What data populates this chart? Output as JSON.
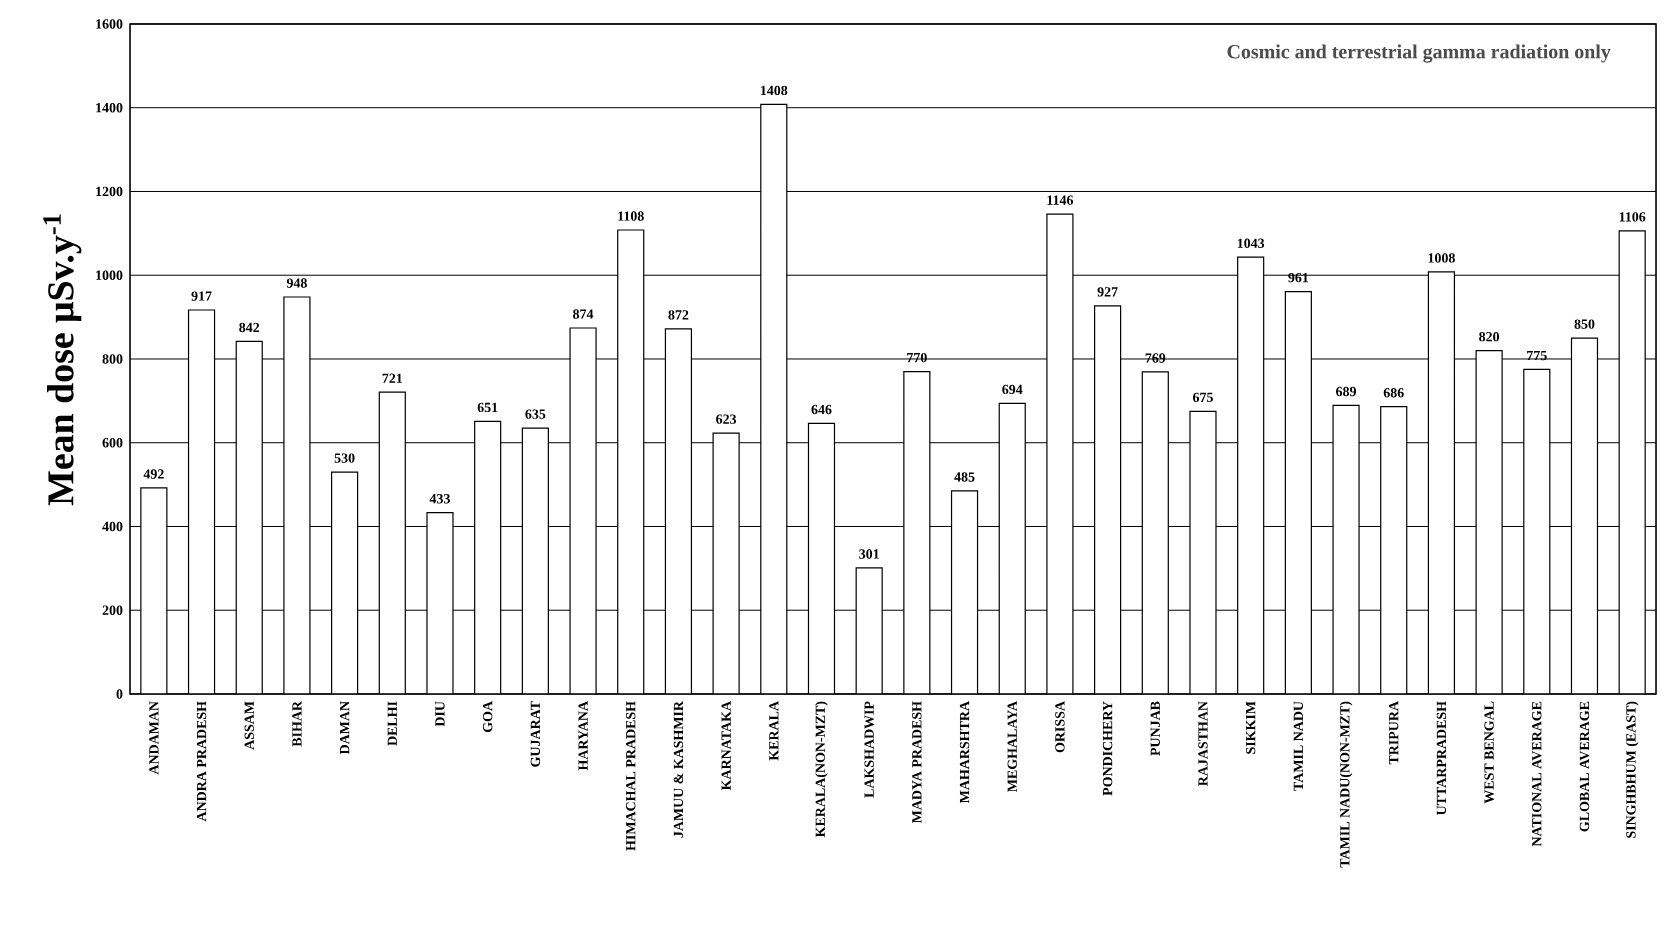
{
  "chart_data": {
    "type": "bar",
    "categories": [
      "ANDAMAN",
      "ANDRA PRADESH",
      "ASSAM",
      "BIHAR",
      "DAMAN",
      "DELHI",
      "DIU",
      "GOA",
      "GUJARAT",
      "HARYANA",
      "HIMACHAL PRADESH",
      "JAMUU & KASHMIR",
      "KARNATAKA",
      "KERALA",
      "KERALA(NON-MZT)",
      "LAKSHADWIP",
      "MADYA PRADESH",
      "MAHARSHTRA",
      "MEGHALAYA",
      "ORISSA",
      "PONDICHERY",
      "PUNJAB",
      "RAJASTHAN",
      "SIKKIM",
      "TAMIL NADU",
      "TAMIL NADU(NON-MZT)",
      "TRIPURA",
      "UTTARPRADESH",
      "WEST BENGAL",
      "NATIONAL AVERAGE",
      "GLOBAL AVERAGE",
      "SINGHBHUM (EAST)"
    ],
    "values": [
      492,
      917,
      842,
      948,
      530,
      721,
      433,
      651,
      635,
      874,
      1108,
      872,
      623,
      1408,
      646,
      301,
      770,
      485,
      694,
      1146,
      927,
      769,
      675,
      1043,
      961,
      689,
      686,
      1008,
      820,
      775,
      850,
      1106
    ],
    "color": "#ffffff",
    "ylabel": "Mean dose μSv.y$^{-1}$",
    "annotations": [
      "Cosmic and terrestrial gamma radiation only"
    ],
    "ylim": [
      0,
      1600
    ],
    "yticks": [
      0,
      200,
      400,
      600,
      800,
      1000,
      1200,
      1400,
      1600
    ],
    "grid": "y",
    "data_labels": true
  }
}
